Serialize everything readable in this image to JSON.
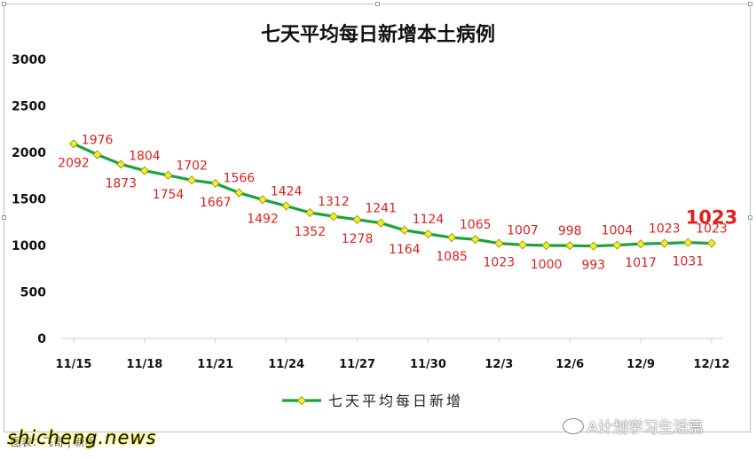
{
  "chart_data": {
    "type": "line",
    "title": "七天平均每日新增本土病例",
    "xlabel": "",
    "ylabel": "",
    "ylim": [
      0,
      3000
    ],
    "yticks": [
      "0",
      "500",
      "1000",
      "1500",
      "2000",
      "2500",
      "3000"
    ],
    "xticks": [
      "11/15",
      "11/18",
      "11/21",
      "11/24",
      "11/27",
      "11/30",
      "12/3",
      "12/6",
      "12/9",
      "12/12"
    ],
    "x": [
      "11/15",
      "11/16",
      "11/17",
      "11/18",
      "11/19",
      "11/20",
      "11/21",
      "11/22",
      "11/23",
      "11/24",
      "11/25",
      "11/26",
      "11/27",
      "11/28",
      "11/29",
      "11/30",
      "12/1",
      "12/2",
      "12/3",
      "12/4",
      "12/5",
      "12/6",
      "12/7",
      "12/8",
      "12/9",
      "12/10",
      "12/11",
      "12/12"
    ],
    "series": [
      {
        "name": "七天平均每日新增",
        "values": [
          2092,
          1976,
          1873,
          1804,
          1754,
          1702,
          1667,
          1566,
          1492,
          1424,
          1352,
          1312,
          1278,
          1241,
          1164,
          1124,
          1085,
          1065,
          1023,
          1007,
          1000,
          998,
          993,
          1004,
          1017,
          1023,
          1031,
          1023
        ],
        "color": "#1aa33c",
        "marker_color": "#f2f21a"
      }
    ],
    "latest_label": "1023",
    "label_color": "#e0201e",
    "grid": false,
    "legend_position": "bottom"
  },
  "watermark": {
    "text": "A计划学习生活篇"
  },
  "source": {
    "text": "图表：飞哥 | 新明"
  },
  "site": {
    "text": "shicheng.news"
  }
}
